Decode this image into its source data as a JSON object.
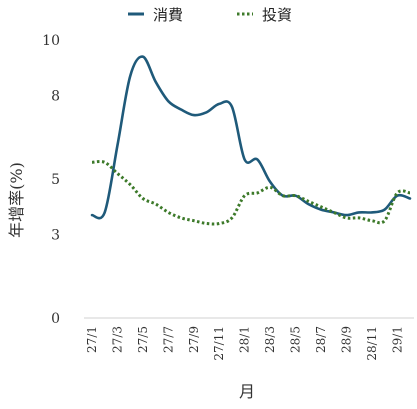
{
  "chart_data": {
    "type": "line",
    "title": "",
    "xlabel": "月",
    "ylabel": "年增率(%)",
    "y_ticks": [
      "0",
      "3",
      "5",
      "8",
      "10"
    ],
    "ylim": [
      0,
      10
    ],
    "x_tick_labels": [
      "27/1",
      "27/3",
      "27/5",
      "27/7",
      "27/9",
      "27/11",
      "28/1",
      "28/3",
      "28/5",
      "28/7",
      "28/9",
      "28/11",
      "29/1"
    ],
    "x": [
      "27/1",
      "27/2",
      "27/3",
      "27/4",
      "27/5",
      "27/6",
      "27/7",
      "27/8",
      "27/9",
      "27/10",
      "27/11",
      "27/12",
      "28/1",
      "28/2",
      "28/3",
      "28/4",
      "28/5",
      "28/6",
      "28/7",
      "28/8",
      "28/9",
      "28/10",
      "28/11",
      "28/12",
      "29/1",
      "29/2"
    ],
    "grid": false,
    "legend_position": "top",
    "series": [
      {
        "name": "消費",
        "color": "#1f5a7a",
        "style": "solid",
        "values": [
          3.7,
          3.8,
          6.2,
          8.7,
          9.4,
          8.5,
          7.8,
          7.5,
          7.3,
          7.4,
          7.7,
          7.6,
          5.7,
          5.7,
          4.9,
          4.4,
          4.4,
          4.1,
          3.9,
          3.8,
          3.7,
          3.8,
          3.8,
          3.9,
          4.4,
          4.3
        ]
      },
      {
        "name": "投資",
        "color": "#3d7a2a",
        "style": "dotted",
        "values": [
          5.6,
          5.6,
          5.2,
          4.8,
          4.3,
          4.1,
          3.8,
          3.6,
          3.5,
          3.4,
          3.4,
          3.6,
          4.4,
          4.5,
          4.7,
          4.4,
          4.4,
          4.2,
          4.0,
          3.8,
          3.6,
          3.6,
          3.5,
          3.5,
          4.5,
          4.5
        ]
      }
    ]
  }
}
